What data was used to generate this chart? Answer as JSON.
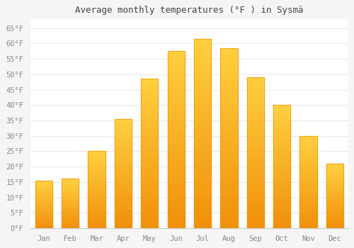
{
  "title": "Average monthly temperatures (°F ) in Sysmä",
  "months": [
    "Jan",
    "Feb",
    "Mar",
    "Apr",
    "May",
    "Jun",
    "Jul",
    "Aug",
    "Sep",
    "Oct",
    "Nov",
    "Dec"
  ],
  "values": [
    15.5,
    16.0,
    25.0,
    35.5,
    48.5,
    57.5,
    61.5,
    58.5,
    49.0,
    40.0,
    30.0,
    21.0
  ],
  "bar_color_top": "#FFD040",
  "bar_color_bottom": "#F0900A",
  "ylim": [
    0,
    68
  ],
  "ytick_values": [
    0,
    5,
    10,
    15,
    20,
    25,
    30,
    35,
    40,
    45,
    50,
    55,
    60,
    65
  ],
  "figure_bg": "#f5f5f5",
  "axes_bg": "#ffffff",
  "grid_color": "#e8e8e8",
  "title_fontsize": 9,
  "tick_fontsize": 7.5,
  "tick_color": "#888888",
  "title_color": "#444444"
}
